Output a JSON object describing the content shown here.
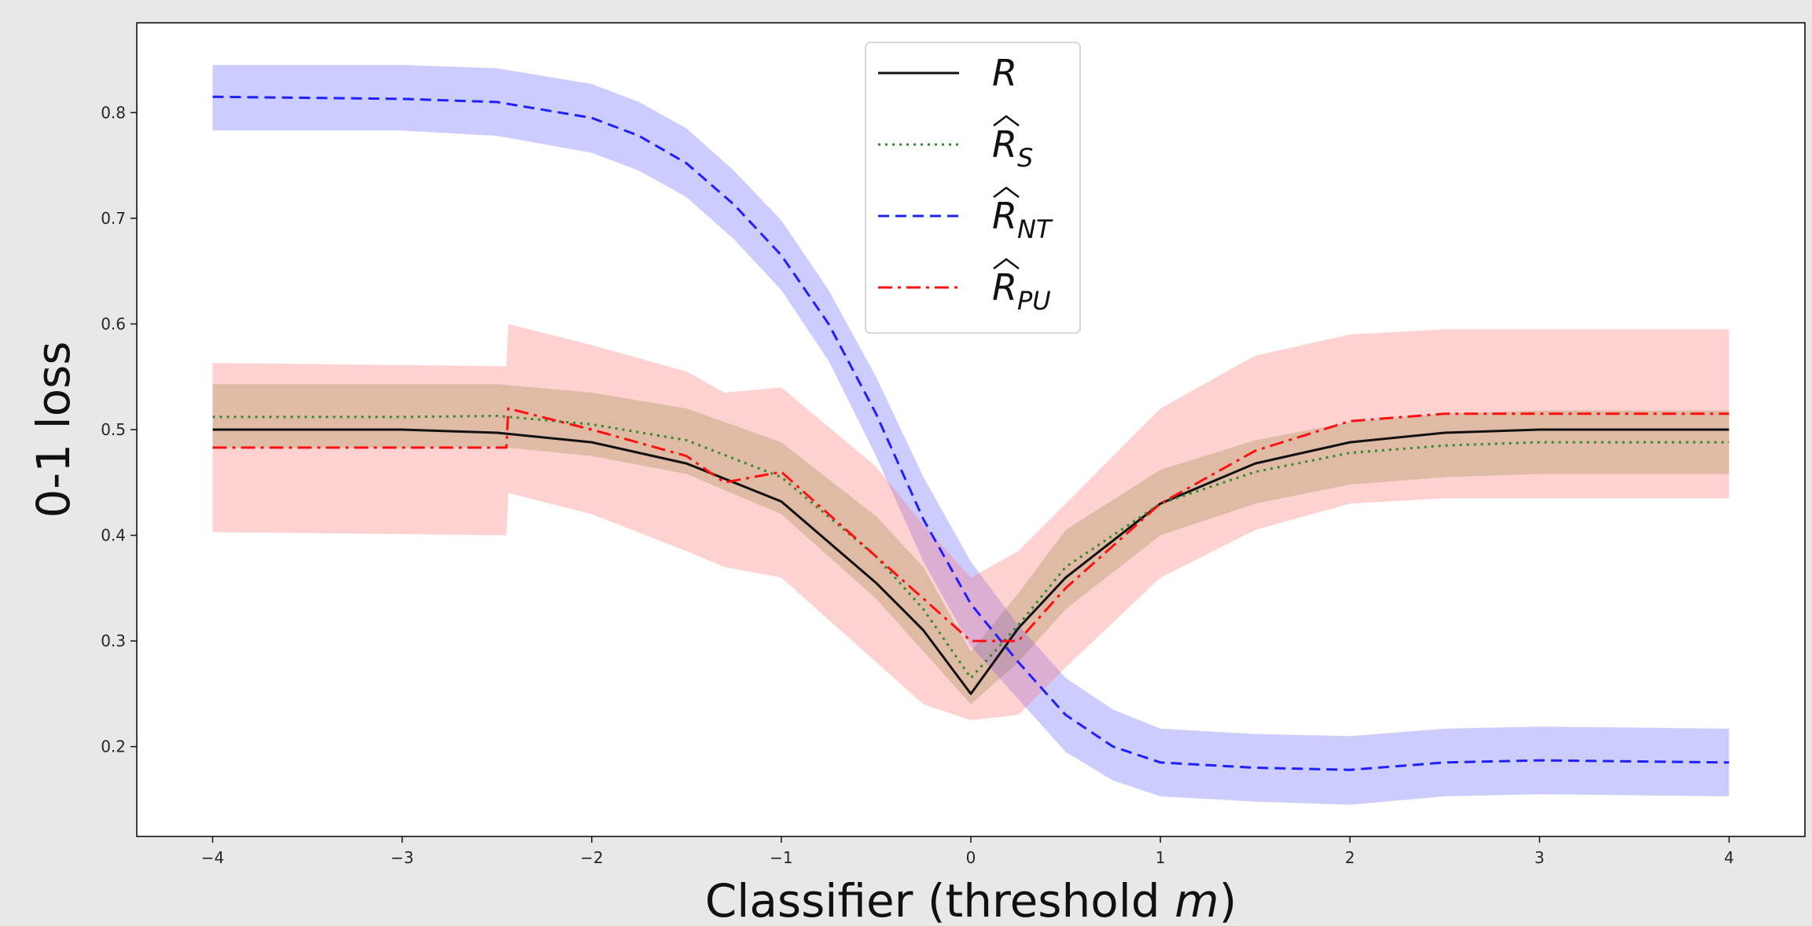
{
  "chart_data": {
    "type": "line",
    "title": "",
    "xlabel_main": "Classifier (threshold ",
    "xlabel_var": "m",
    "xlabel_end": ")",
    "ylabel": "0-1 loss",
    "xlim": [
      -4.4,
      4.4
    ],
    "ylim": [
      0.115,
      0.885
    ],
    "xticks": [
      -4,
      -3,
      -2,
      -1,
      0,
      1,
      2,
      3,
      4
    ],
    "xtick_labels": [
      "−4",
      "−3",
      "−2",
      "−1",
      "0",
      "1",
      "2",
      "3",
      "4"
    ],
    "yticks": [
      0.2,
      0.3,
      0.4,
      0.5,
      0.6,
      0.7,
      0.8
    ],
    "ytick_labels": [
      "0.2",
      "0.3",
      "0.4",
      "0.5",
      "0.6",
      "0.7",
      "0.8"
    ],
    "grid": false,
    "legend_position": "upper-center",
    "series": [
      {
        "name": "R",
        "sub": "",
        "hat": false,
        "color": "#111111",
        "dash": "solid",
        "x": [
          -4,
          -3,
          -2.5,
          -2,
          -1.5,
          -1,
          -0.5,
          -0.25,
          0,
          0.25,
          0.5,
          1,
          1.5,
          2,
          2.5,
          3,
          4
        ],
        "values": [
          0.5,
          0.5,
          0.497,
          0.488,
          0.468,
          0.432,
          0.355,
          0.31,
          0.25,
          0.312,
          0.36,
          0.43,
          0.468,
          0.488,
          0.497,
          0.5,
          0.5
        ]
      },
      {
        "name": "R",
        "sub": "S",
        "hat": true,
        "color": "#2e8b2e",
        "dash": "dotted",
        "x": [
          -4,
          -3,
          -2.5,
          -2,
          -1.5,
          -1,
          -0.5,
          -0.25,
          0,
          0.25,
          0.5,
          1,
          1.5,
          2,
          2.5,
          3,
          4
        ],
        "values": [
          0.512,
          0.512,
          0.513,
          0.505,
          0.49,
          0.455,
          0.38,
          0.33,
          0.265,
          0.315,
          0.37,
          0.43,
          0.46,
          0.478,
          0.485,
          0.488,
          0.488
        ],
        "lower": [
          0.483,
          0.483,
          0.484,
          0.475,
          0.458,
          0.42,
          0.34,
          0.29,
          0.24,
          0.28,
          0.33,
          0.4,
          0.43,
          0.448,
          0.455,
          0.458,
          0.458
        ],
        "upper": [
          0.543,
          0.543,
          0.543,
          0.535,
          0.52,
          0.488,
          0.418,
          0.37,
          0.29,
          0.345,
          0.405,
          0.462,
          0.49,
          0.507,
          0.515,
          0.518,
          0.518
        ],
        "band_color": "#6b8e23"
      },
      {
        "name": "R",
        "sub": "NT",
        "hat": true,
        "color": "#1f1fff",
        "dash": "dashed",
        "x": [
          -4,
          -3,
          -2.5,
          -2,
          -1.75,
          -1.5,
          -1.25,
          -1,
          -0.75,
          -0.5,
          -0.25,
          0,
          0.25,
          0.5,
          0.75,
          1,
          1.5,
          2,
          2.5,
          3,
          4
        ],
        "values": [
          0.815,
          0.813,
          0.81,
          0.795,
          0.778,
          0.752,
          0.713,
          0.665,
          0.6,
          0.515,
          0.415,
          0.335,
          0.28,
          0.23,
          0.2,
          0.185,
          0.18,
          0.178,
          0.185,
          0.187,
          0.185
        ],
        "lower": [
          0.783,
          0.783,
          0.778,
          0.762,
          0.745,
          0.72,
          0.68,
          0.632,
          0.565,
          0.475,
          0.375,
          0.295,
          0.245,
          0.195,
          0.168,
          0.153,
          0.148,
          0.145,
          0.153,
          0.155,
          0.153
        ],
        "upper": [
          0.845,
          0.845,
          0.842,
          0.827,
          0.81,
          0.785,
          0.745,
          0.698,
          0.632,
          0.55,
          0.455,
          0.375,
          0.315,
          0.265,
          0.235,
          0.217,
          0.212,
          0.21,
          0.217,
          0.219,
          0.217
        ],
        "band_color": "#5555ff"
      },
      {
        "name": "R",
        "sub": "PU",
        "hat": true,
        "color": "#ff1010",
        "dash": "dashdot",
        "x": [
          -4,
          -2.45,
          -2.44,
          -2,
          -1.5,
          -1.3,
          -1,
          -0.5,
          -0.25,
          0,
          0.25,
          0.5,
          1,
          1.5,
          2,
          2.5,
          3,
          4
        ],
        "values": [
          0.483,
          0.483,
          0.52,
          0.5,
          0.475,
          0.45,
          0.46,
          0.38,
          0.34,
          0.3,
          0.3,
          0.35,
          0.43,
          0.48,
          0.508,
          0.515,
          0.515,
          0.515
        ],
        "lower": [
          0.403,
          0.4,
          0.44,
          0.42,
          0.385,
          0.37,
          0.36,
          0.28,
          0.24,
          0.225,
          0.23,
          0.275,
          0.36,
          0.405,
          0.43,
          0.435,
          0.435,
          0.435
        ],
        "upper": [
          0.563,
          0.56,
          0.6,
          0.58,
          0.555,
          0.535,
          0.54,
          0.465,
          0.41,
          0.36,
          0.385,
          0.43,
          0.52,
          0.57,
          0.59,
          0.595,
          0.595,
          0.595
        ],
        "band_color": "#ff6b6b"
      }
    ]
  }
}
